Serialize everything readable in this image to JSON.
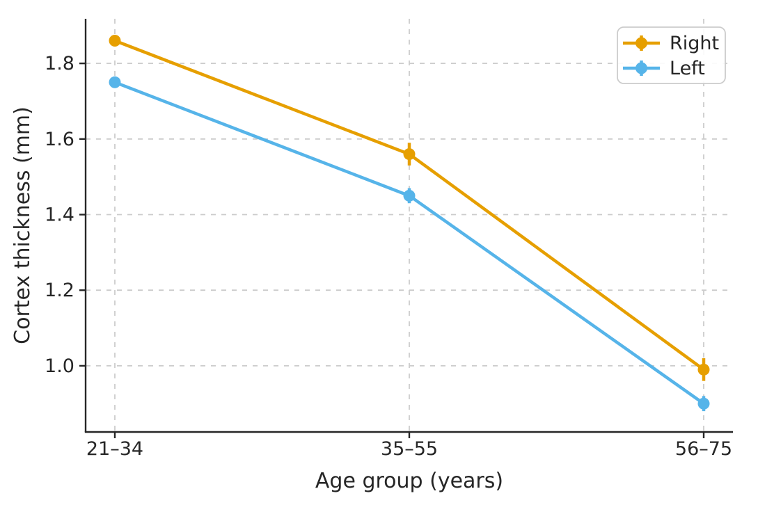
{
  "figure": {
    "background": "#ffffff",
    "text_color": "#262626",
    "spine_color": "#262626",
    "grid_color": "#cccccc",
    "legend_border_color": "#cccccc"
  },
  "chart_data": {
    "type": "line",
    "title": "",
    "xlabel": "Age group (years)",
    "ylabel": "Cortex thickness (mm)",
    "categories": [
      "21–34",
      "35–55",
      "56–75"
    ],
    "yticks": [
      1.0,
      1.2,
      1.4,
      1.6,
      1.8
    ],
    "ytick_labels": [
      "1.0",
      "1.2",
      "1.4",
      "1.6",
      "1.8"
    ],
    "ylim": [
      0.825,
      1.918
    ],
    "grid": "dashed gridlines at all x categories and y ticks",
    "legend_position": "upper right",
    "marker": "filled circle with error bars",
    "series": [
      {
        "name": "Right",
        "color": "#E69F00",
        "values": [
          1.86,
          1.56,
          0.99
        ],
        "errors": [
          0.01,
          0.03,
          0.03
        ]
      },
      {
        "name": "Left",
        "color": "#56B4E9",
        "values": [
          1.75,
          1.45,
          0.9
        ],
        "errors": [
          0.01,
          0.02,
          0.02
        ]
      }
    ]
  }
}
